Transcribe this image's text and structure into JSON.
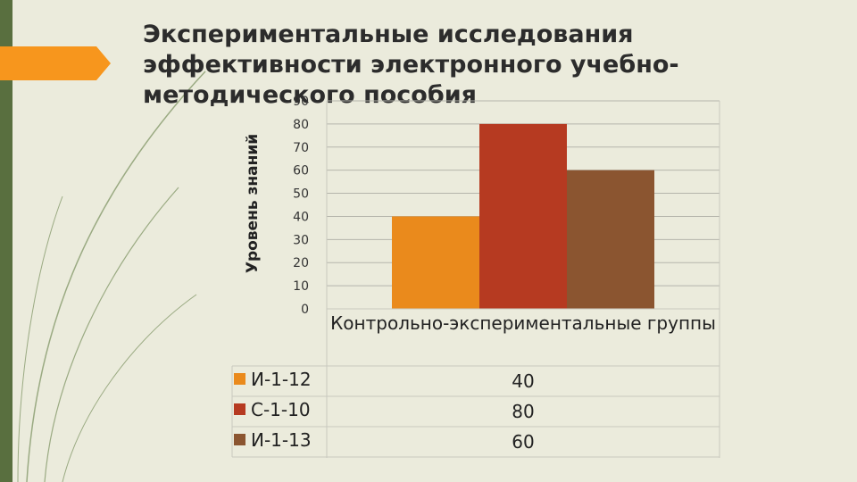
{
  "slide": {
    "title": "Экспериментальные исследования эффективности электронного учебно-методического пособия"
  },
  "colors": {
    "background": "#ebebdc",
    "sidebar": "#596f3f",
    "accent": "#f7961d"
  },
  "chart_data": {
    "type": "bar",
    "categories": [
      "Контрольно-экспериментальные группы"
    ],
    "series": [
      {
        "name": "И-1-12",
        "values": [
          40
        ],
        "color": "#ea8a1c"
      },
      {
        "name": "С-1-10",
        "values": [
          80
        ],
        "color": "#b63a21"
      },
      {
        "name": "И-1-13",
        "values": [
          60
        ],
        "color": "#8b5530"
      }
    ],
    "ylabel": "Уровень знаний",
    "ylim": [
      0,
      90
    ],
    "yticks": [
      "0",
      "10",
      "20",
      "30",
      "40",
      "50",
      "60",
      "70",
      "80",
      "90"
    ],
    "grid": true,
    "data_table": true,
    "table_values": [
      "40",
      "80",
      "60"
    ]
  }
}
